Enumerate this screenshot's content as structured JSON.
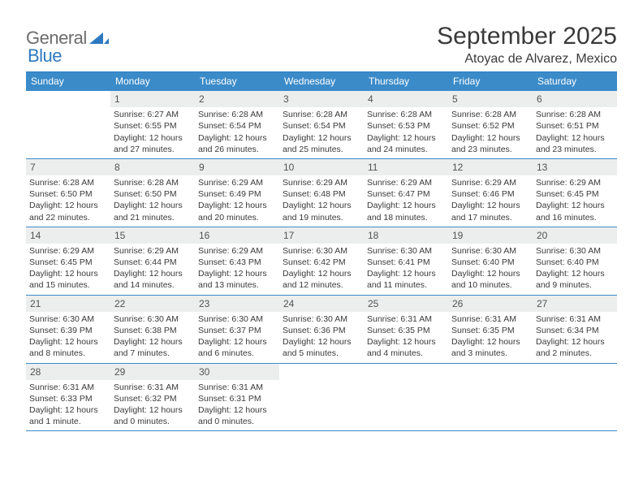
{
  "logo": {
    "word1": "General",
    "word2": "Blue"
  },
  "title": "September 2025",
  "location": "Atoyac de Alvarez, Mexico",
  "colors": {
    "header_bg": "#3b8bc9",
    "accent": "#2d79bf",
    "daynum_bg": "#eceeee",
    "text": "#3a3a3a",
    "logo_gray": "#6c6c6c",
    "background": "#ffffff"
  },
  "layout": {
    "columns": 7,
    "rows": 5,
    "cell_font_size": 10.5,
    "header_font_size": 12,
    "title_font_size": 30
  },
  "daysOfWeek": [
    "Sunday",
    "Monday",
    "Tuesday",
    "Wednesday",
    "Thursday",
    "Friday",
    "Saturday"
  ],
  "weeks": [
    [
      {
        "num": "",
        "lines": []
      },
      {
        "num": "1",
        "lines": [
          "Sunrise: 6:27 AM",
          "Sunset: 6:55 PM",
          "Daylight: 12 hours",
          "and 27 minutes."
        ]
      },
      {
        "num": "2",
        "lines": [
          "Sunrise: 6:28 AM",
          "Sunset: 6:54 PM",
          "Daylight: 12 hours",
          "and 26 minutes."
        ]
      },
      {
        "num": "3",
        "lines": [
          "Sunrise: 6:28 AM",
          "Sunset: 6:54 PM",
          "Daylight: 12 hours",
          "and 25 minutes."
        ]
      },
      {
        "num": "4",
        "lines": [
          "Sunrise: 6:28 AM",
          "Sunset: 6:53 PM",
          "Daylight: 12 hours",
          "and 24 minutes."
        ]
      },
      {
        "num": "5",
        "lines": [
          "Sunrise: 6:28 AM",
          "Sunset: 6:52 PM",
          "Daylight: 12 hours",
          "and 23 minutes."
        ]
      },
      {
        "num": "6",
        "lines": [
          "Sunrise: 6:28 AM",
          "Sunset: 6:51 PM",
          "Daylight: 12 hours",
          "and 23 minutes."
        ]
      }
    ],
    [
      {
        "num": "7",
        "lines": [
          "Sunrise: 6:28 AM",
          "Sunset: 6:50 PM",
          "Daylight: 12 hours",
          "and 22 minutes."
        ]
      },
      {
        "num": "8",
        "lines": [
          "Sunrise: 6:28 AM",
          "Sunset: 6:50 PM",
          "Daylight: 12 hours",
          "and 21 minutes."
        ]
      },
      {
        "num": "9",
        "lines": [
          "Sunrise: 6:29 AM",
          "Sunset: 6:49 PM",
          "Daylight: 12 hours",
          "and 20 minutes."
        ]
      },
      {
        "num": "10",
        "lines": [
          "Sunrise: 6:29 AM",
          "Sunset: 6:48 PM",
          "Daylight: 12 hours",
          "and 19 minutes."
        ]
      },
      {
        "num": "11",
        "lines": [
          "Sunrise: 6:29 AM",
          "Sunset: 6:47 PM",
          "Daylight: 12 hours",
          "and 18 minutes."
        ]
      },
      {
        "num": "12",
        "lines": [
          "Sunrise: 6:29 AM",
          "Sunset: 6:46 PM",
          "Daylight: 12 hours",
          "and 17 minutes."
        ]
      },
      {
        "num": "13",
        "lines": [
          "Sunrise: 6:29 AM",
          "Sunset: 6:45 PM",
          "Daylight: 12 hours",
          "and 16 minutes."
        ]
      }
    ],
    [
      {
        "num": "14",
        "lines": [
          "Sunrise: 6:29 AM",
          "Sunset: 6:45 PM",
          "Daylight: 12 hours",
          "and 15 minutes."
        ]
      },
      {
        "num": "15",
        "lines": [
          "Sunrise: 6:29 AM",
          "Sunset: 6:44 PM",
          "Daylight: 12 hours",
          "and 14 minutes."
        ]
      },
      {
        "num": "16",
        "lines": [
          "Sunrise: 6:29 AM",
          "Sunset: 6:43 PM",
          "Daylight: 12 hours",
          "and 13 minutes."
        ]
      },
      {
        "num": "17",
        "lines": [
          "Sunrise: 6:30 AM",
          "Sunset: 6:42 PM",
          "Daylight: 12 hours",
          "and 12 minutes."
        ]
      },
      {
        "num": "18",
        "lines": [
          "Sunrise: 6:30 AM",
          "Sunset: 6:41 PM",
          "Daylight: 12 hours",
          "and 11 minutes."
        ]
      },
      {
        "num": "19",
        "lines": [
          "Sunrise: 6:30 AM",
          "Sunset: 6:40 PM",
          "Daylight: 12 hours",
          "and 10 minutes."
        ]
      },
      {
        "num": "20",
        "lines": [
          "Sunrise: 6:30 AM",
          "Sunset: 6:40 PM",
          "Daylight: 12 hours",
          "and 9 minutes."
        ]
      }
    ],
    [
      {
        "num": "21",
        "lines": [
          "Sunrise: 6:30 AM",
          "Sunset: 6:39 PM",
          "Daylight: 12 hours",
          "and 8 minutes."
        ]
      },
      {
        "num": "22",
        "lines": [
          "Sunrise: 6:30 AM",
          "Sunset: 6:38 PM",
          "Daylight: 12 hours",
          "and 7 minutes."
        ]
      },
      {
        "num": "23",
        "lines": [
          "Sunrise: 6:30 AM",
          "Sunset: 6:37 PM",
          "Daylight: 12 hours",
          "and 6 minutes."
        ]
      },
      {
        "num": "24",
        "lines": [
          "Sunrise: 6:30 AM",
          "Sunset: 6:36 PM",
          "Daylight: 12 hours",
          "and 5 minutes."
        ]
      },
      {
        "num": "25",
        "lines": [
          "Sunrise: 6:31 AM",
          "Sunset: 6:35 PM",
          "Daylight: 12 hours",
          "and 4 minutes."
        ]
      },
      {
        "num": "26",
        "lines": [
          "Sunrise: 6:31 AM",
          "Sunset: 6:35 PM",
          "Daylight: 12 hours",
          "and 3 minutes."
        ]
      },
      {
        "num": "27",
        "lines": [
          "Sunrise: 6:31 AM",
          "Sunset: 6:34 PM",
          "Daylight: 12 hours",
          "and 2 minutes."
        ]
      }
    ],
    [
      {
        "num": "28",
        "lines": [
          "Sunrise: 6:31 AM",
          "Sunset: 6:33 PM",
          "Daylight: 12 hours",
          "and 1 minute."
        ]
      },
      {
        "num": "29",
        "lines": [
          "Sunrise: 6:31 AM",
          "Sunset: 6:32 PM",
          "Daylight: 12 hours",
          "and 0 minutes."
        ]
      },
      {
        "num": "30",
        "lines": [
          "Sunrise: 6:31 AM",
          "Sunset: 6:31 PM",
          "Daylight: 12 hours",
          "and 0 minutes."
        ]
      },
      {
        "num": "",
        "lines": []
      },
      {
        "num": "",
        "lines": []
      },
      {
        "num": "",
        "lines": []
      },
      {
        "num": "",
        "lines": []
      }
    ]
  ]
}
